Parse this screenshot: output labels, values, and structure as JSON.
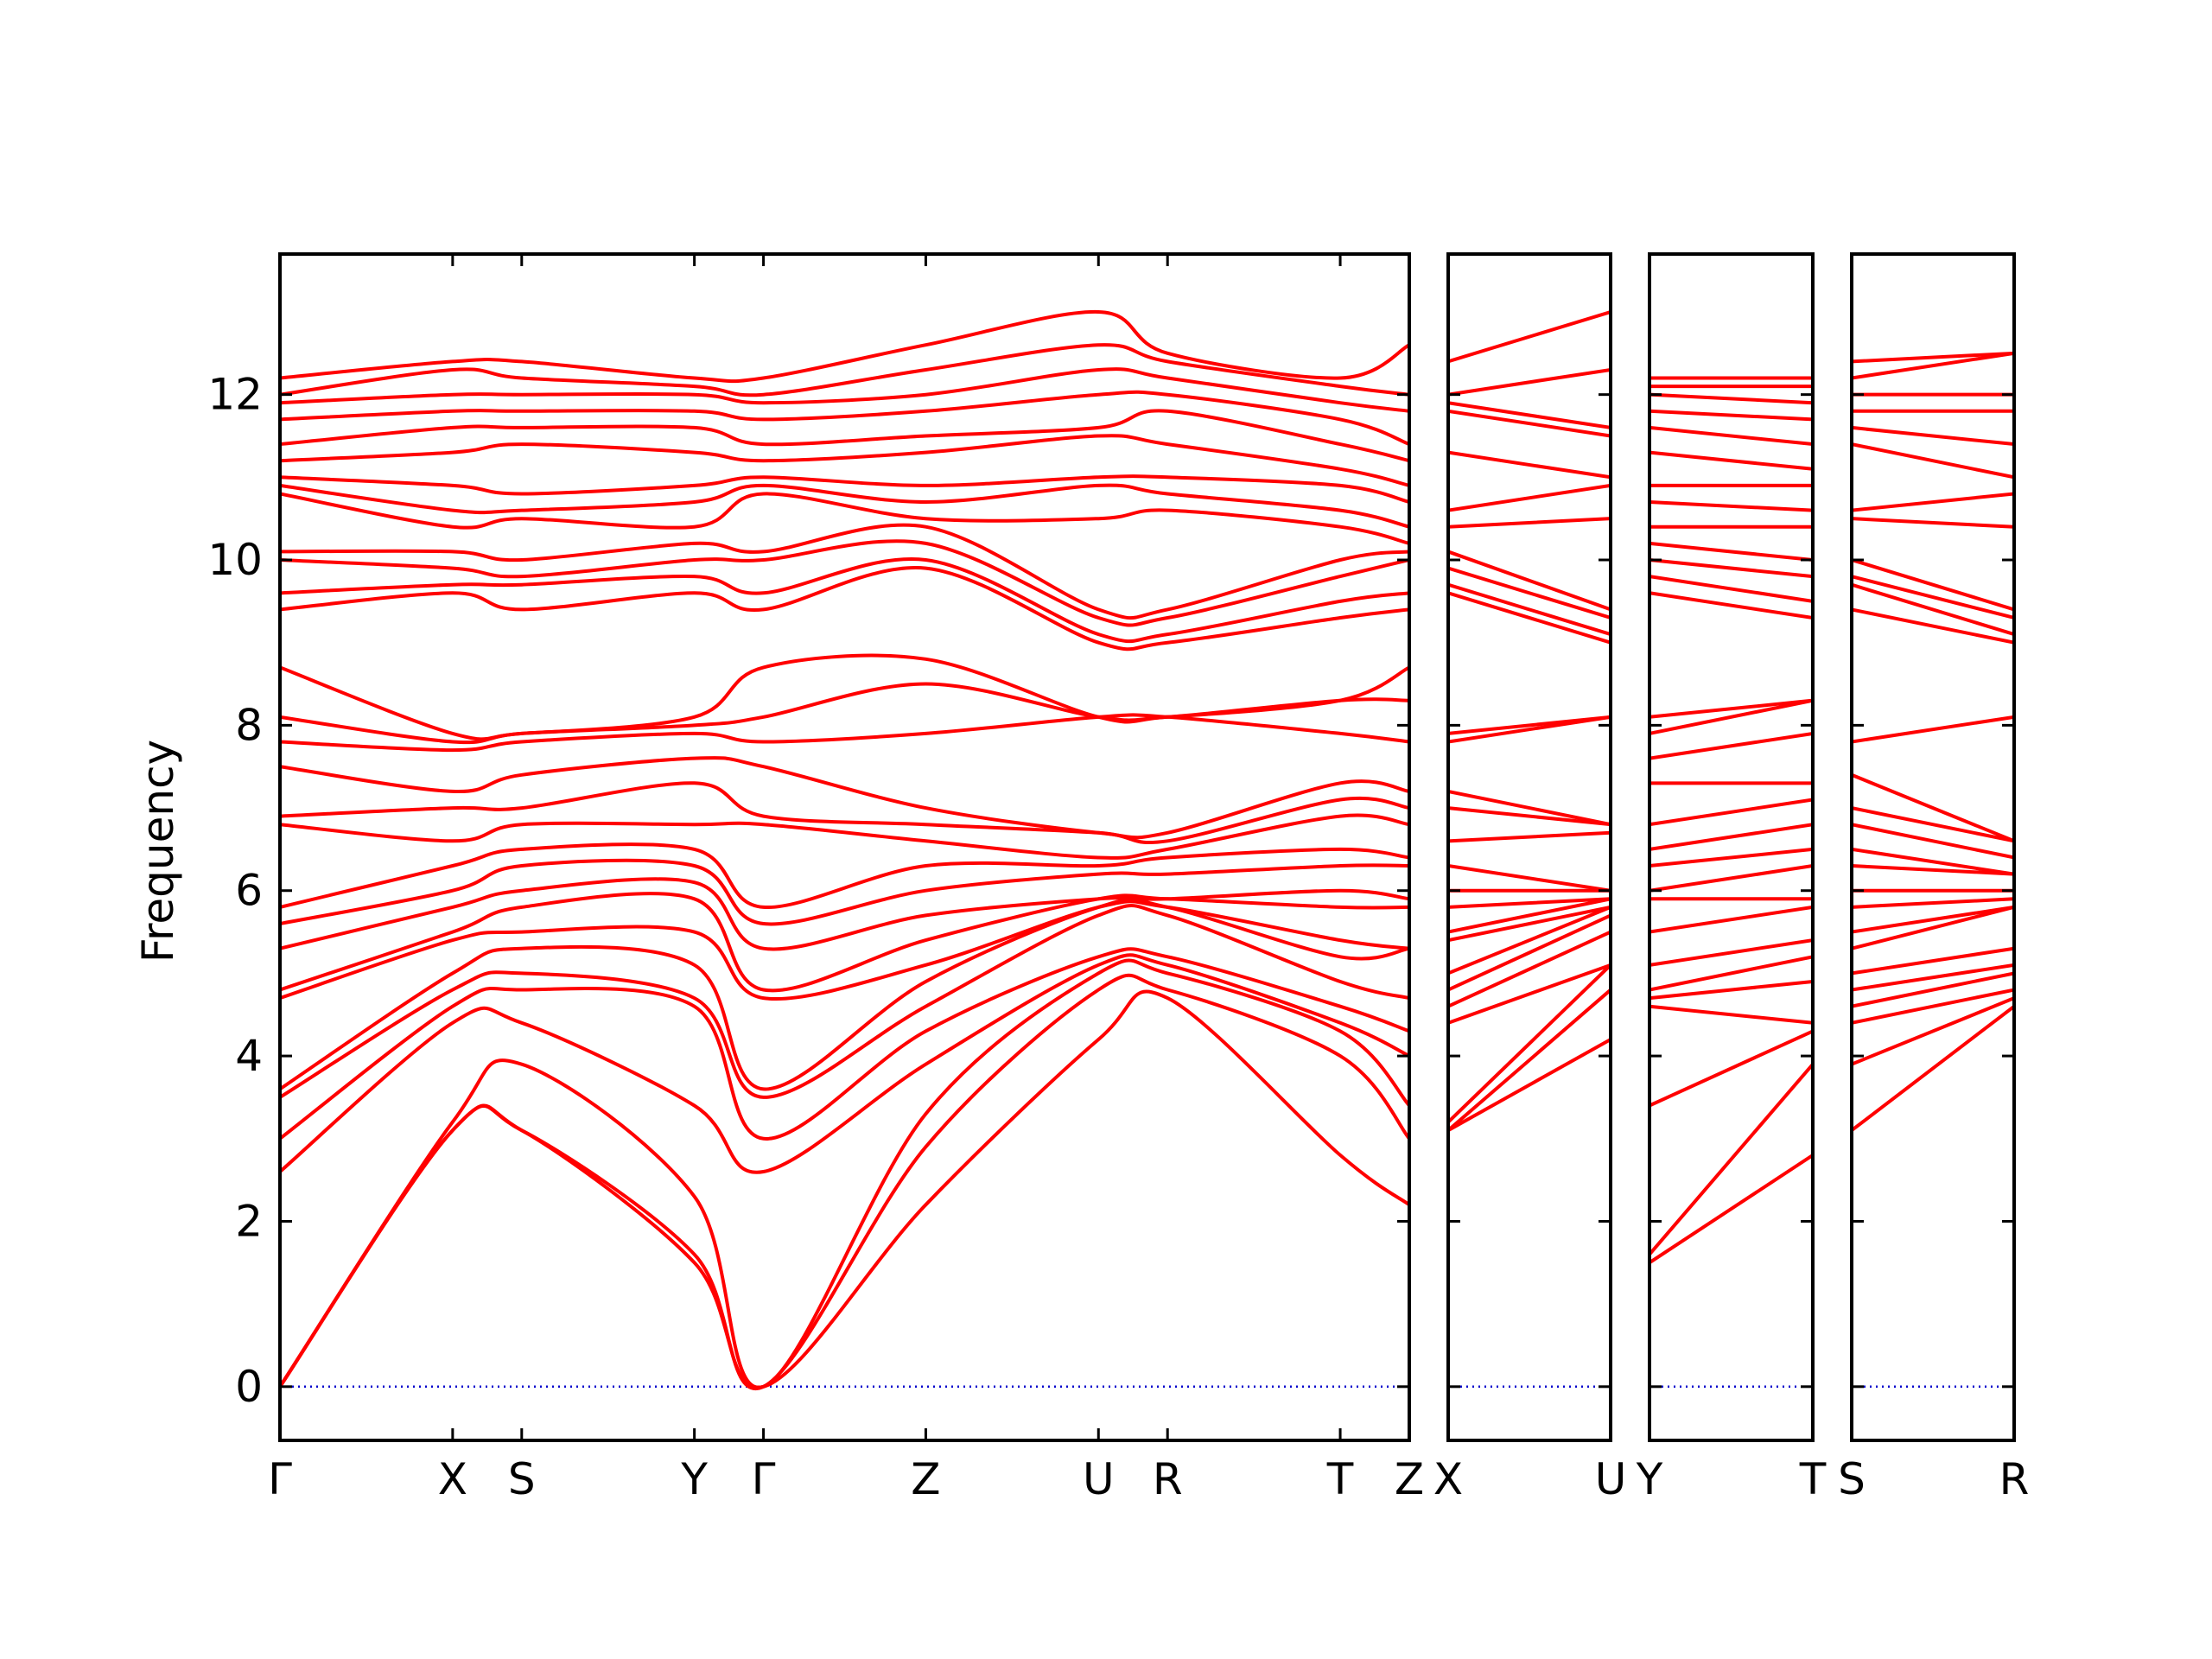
{
  "chart_data": {
    "type": "line",
    "ylabel": "Frequency",
    "ylim": [
      -0.65,
      13.7
    ],
    "yticks": [
      0,
      2,
      4,
      6,
      8,
      10,
      12
    ],
    "band_color": "#ff0000",
    "zero_line_color": "#0000cc",
    "grid": false,
    "panels": [
      {
        "points": [
          {
            "label": "Γ",
            "x": 0.0
          },
          {
            "label": "X",
            "x": 0.5
          },
          {
            "label": "S",
            "x": 0.7
          },
          {
            "label": "Y",
            "x": 1.2
          },
          {
            "label": "Γ",
            "x": 1.4
          },
          {
            "label": "Z",
            "x": 1.87
          },
          {
            "label": "U",
            "x": 2.37
          },
          {
            "label": "R",
            "x": 2.57
          },
          {
            "label": "T",
            "x": 3.07
          },
          {
            "label": "Z",
            "x": 3.27
          }
        ],
        "bands": [
          [
            0.0,
            3.1,
            3.1,
            1.5,
            0.0,
            2.2,
            4.2,
            4.7,
            2.8,
            2.2
          ],
          [
            0.0,
            3.1,
            3.1,
            1.6,
            0.0,
            2.9,
            4.8,
            4.8,
            4.0,
            3.0
          ],
          [
            0.0,
            3.2,
            3.9,
            2.3,
            0.0,
            3.3,
            5.0,
            5.0,
            4.3,
            3.4
          ],
          [
            2.6,
            4.4,
            4.4,
            3.4,
            2.6,
            3.9,
            5.1,
            5.1,
            4.4,
            4.0
          ],
          [
            3.0,
            4.6,
            4.8,
            4.6,
            3.0,
            4.3,
            5.2,
            5.2,
            4.6,
            4.3
          ],
          [
            3.5,
            4.8,
            5.0,
            4.7,
            3.5,
            4.6,
            5.7,
            5.7,
            4.9,
            4.7
          ],
          [
            3.6,
            5.0,
            5.3,
            5.1,
            3.6,
            4.9,
            5.8,
            5.8,
            5.2,
            5.3
          ],
          [
            4.7,
            5.4,
            5.5,
            5.5,
            4.7,
            5.1,
            5.8,
            5.8,
            5.4,
            5.3
          ],
          [
            4.8,
            5.5,
            5.8,
            5.9,
            4.8,
            5.4,
            5.9,
            5.9,
            5.8,
            5.8
          ],
          [
            5.3,
            5.8,
            6.0,
            6.1,
            5.3,
            5.7,
            5.9,
            5.9,
            6.0,
            5.9
          ],
          [
            5.6,
            6.0,
            6.3,
            6.3,
            5.6,
            6.0,
            6.2,
            6.2,
            6.3,
            6.3
          ],
          [
            5.8,
            6.3,
            6.5,
            6.5,
            5.8,
            6.3,
            6.3,
            6.4,
            6.5,
            6.4
          ],
          [
            6.8,
            6.6,
            6.8,
            6.8,
            6.8,
            6.6,
            6.4,
            6.5,
            6.9,
            6.8
          ],
          [
            6.9,
            7.0,
            7.0,
            7.3,
            6.9,
            6.8,
            6.7,
            6.6,
            7.1,
            7.0
          ],
          [
            7.5,
            7.2,
            7.4,
            7.6,
            7.5,
            7.0,
            6.7,
            6.7,
            7.3,
            7.2
          ],
          [
            7.8,
            7.7,
            7.8,
            7.9,
            7.8,
            7.9,
            8.1,
            8.1,
            7.9,
            7.8
          ],
          [
            8.1,
            7.8,
            7.9,
            8.0,
            8.1,
            8.5,
            8.1,
            8.1,
            8.3,
            8.3
          ],
          [
            8.7,
            7.9,
            7.9,
            8.1,
            8.7,
            8.8,
            8.1,
            8.1,
            8.3,
            8.7
          ],
          [
            9.4,
            9.6,
            9.4,
            9.6,
            9.4,
            9.9,
            9.0,
            9.0,
            9.3,
            9.4
          ],
          [
            9.6,
            9.7,
            9.7,
            9.8,
            9.6,
            10.0,
            9.1,
            9.1,
            9.5,
            9.6
          ],
          [
            10.0,
            9.9,
            9.8,
            10.0,
            10.0,
            10.2,
            9.3,
            9.3,
            9.8,
            10.0
          ],
          [
            10.1,
            10.1,
            10.0,
            10.2,
            10.1,
            10.4,
            9.4,
            9.4,
            10.0,
            10.1
          ],
          [
            10.8,
            10.4,
            10.5,
            10.4,
            10.8,
            10.5,
            10.5,
            10.6,
            10.4,
            10.2
          ],
          [
            10.9,
            10.6,
            10.6,
            10.7,
            10.9,
            10.7,
            10.9,
            10.8,
            10.6,
            10.4
          ],
          [
            11.0,
            10.9,
            10.8,
            10.9,
            11.0,
            10.9,
            11.0,
            11.0,
            10.9,
            10.7
          ],
          [
            11.2,
            11.3,
            11.4,
            11.3,
            11.2,
            11.3,
            11.5,
            11.4,
            11.1,
            10.9
          ],
          [
            11.4,
            11.6,
            11.6,
            11.6,
            11.4,
            11.5,
            11.6,
            11.8,
            11.4,
            11.2
          ],
          [
            11.7,
            11.8,
            11.8,
            11.8,
            11.7,
            11.8,
            12.0,
            12.0,
            11.7,
            11.4
          ],
          [
            11.9,
            12.0,
            12.0,
            12.0,
            11.9,
            12.0,
            12.3,
            12.2,
            11.9,
            11.8
          ],
          [
            12.0,
            12.3,
            12.2,
            12.1,
            12.0,
            12.3,
            12.6,
            12.4,
            12.1,
            12.0
          ],
          [
            12.2,
            12.4,
            12.4,
            12.2,
            12.2,
            12.6,
            13.0,
            12.5,
            12.2,
            12.6
          ]
        ]
      },
      {
        "points": [
          {
            "label": "X",
            "x": 0.0
          },
          {
            "label": "U",
            "x": 0.47
          }
        ],
        "bands": [
          [
            3.1,
            4.2
          ],
          [
            3.1,
            4.8
          ],
          [
            3.2,
            5.1
          ],
          [
            4.4,
            5.1
          ],
          [
            4.6,
            5.5
          ],
          [
            4.8,
            5.7
          ],
          [
            5.0,
            5.8
          ],
          [
            5.4,
            5.8
          ],
          [
            5.5,
            5.9
          ],
          [
            5.8,
            5.9
          ],
          [
            6.0,
            6.0
          ],
          [
            6.3,
            6.0
          ],
          [
            6.6,
            6.7
          ],
          [
            7.0,
            6.8
          ],
          [
            7.2,
            6.8
          ],
          [
            7.8,
            8.1
          ],
          [
            7.9,
            8.1
          ],
          [
            9.6,
            9.0
          ],
          [
            9.7,
            9.1
          ],
          [
            9.9,
            9.3
          ],
          [
            10.1,
            9.4
          ],
          [
            10.4,
            10.5
          ],
          [
            10.6,
            10.9
          ],
          [
            11.3,
            11.0
          ],
          [
            11.8,
            11.5
          ],
          [
            11.9,
            11.6
          ],
          [
            12.0,
            12.3
          ],
          [
            12.4,
            13.0
          ]
        ]
      },
      {
        "points": [
          {
            "label": "Y",
            "x": 0.0
          },
          {
            "label": "T",
            "x": 0.47
          }
        ],
        "bands": [
          [
            1.5,
            2.8
          ],
          [
            1.6,
            3.9
          ],
          [
            3.4,
            4.3
          ],
          [
            4.6,
            4.4
          ],
          [
            4.7,
            4.9
          ],
          [
            4.8,
            5.2
          ],
          [
            5.1,
            5.4
          ],
          [
            5.5,
            5.8
          ],
          [
            5.9,
            5.9
          ],
          [
            6.0,
            6.3
          ],
          [
            6.3,
            6.5
          ],
          [
            6.5,
            6.8
          ],
          [
            6.8,
            7.1
          ],
          [
            7.3,
            7.3
          ],
          [
            7.6,
            7.9
          ],
          [
            7.9,
            8.3
          ],
          [
            8.1,
            8.3
          ],
          [
            9.6,
            9.3
          ],
          [
            9.8,
            9.5
          ],
          [
            10.0,
            9.8
          ],
          [
            10.2,
            10.0
          ],
          [
            10.4,
            10.4
          ],
          [
            10.7,
            10.6
          ],
          [
            10.9,
            10.9
          ],
          [
            11.3,
            11.1
          ],
          [
            11.6,
            11.4
          ],
          [
            11.8,
            11.7
          ],
          [
            12.0,
            11.9
          ],
          [
            12.1,
            12.1
          ],
          [
            12.2,
            12.2
          ]
        ]
      },
      {
        "points": [
          {
            "label": "S",
            "x": 0.0
          },
          {
            "label": "R",
            "x": 0.47
          }
        ],
        "bands": [
          [
            3.1,
            4.6
          ],
          [
            3.9,
            4.7
          ],
          [
            4.4,
            4.8
          ],
          [
            4.6,
            5.0
          ],
          [
            4.8,
            5.1
          ],
          [
            5.0,
            5.3
          ],
          [
            5.3,
            5.8
          ],
          [
            5.5,
            5.8
          ],
          [
            5.8,
            5.9
          ],
          [
            6.0,
            6.0
          ],
          [
            6.3,
            6.2
          ],
          [
            6.5,
            6.2
          ],
          [
            6.8,
            6.4
          ],
          [
            7.0,
            6.6
          ],
          [
            7.4,
            6.6
          ],
          [
            7.8,
            8.1
          ],
          [
            9.4,
            9.0
          ],
          [
            9.7,
            9.1
          ],
          [
            9.8,
            9.3
          ],
          [
            10.0,
            9.4
          ],
          [
            10.5,
            10.4
          ],
          [
            10.6,
            10.8
          ],
          [
            11.4,
            11.0
          ],
          [
            11.6,
            11.4
          ],
          [
            11.8,
            11.8
          ],
          [
            12.0,
            12.0
          ],
          [
            12.2,
            12.5
          ],
          [
            12.4,
            12.5
          ]
        ]
      }
    ]
  }
}
